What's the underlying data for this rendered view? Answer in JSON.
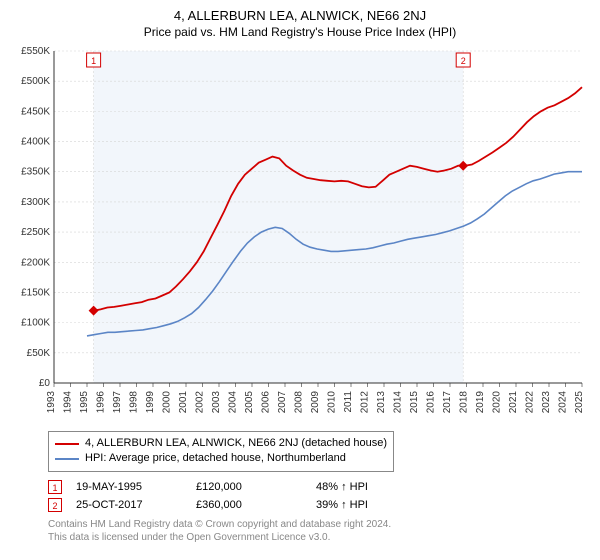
{
  "title": "4, ALLERBURN LEA, ALNWICK, NE66 2NJ",
  "subtitle": "Price paid vs. HM Land Registry's House Price Index (HPI)",
  "chart": {
    "type": "line",
    "background_color": "#ffffff",
    "plot_band_color": "#f2f6fb",
    "grid_color": "#d5d5d5",
    "axis_color": "#333333",
    "tick_font_size": 10,
    "x_years": [
      1993,
      1994,
      1995,
      1996,
      1997,
      1998,
      1999,
      2000,
      2001,
      2002,
      2003,
      2004,
      2005,
      2006,
      2007,
      2008,
      2009,
      2010,
      2011,
      2012,
      2013,
      2014,
      2015,
      2016,
      2017,
      2018,
      2019,
      2020,
      2021,
      2022,
      2023,
      2024,
      2025
    ],
    "x_year_min": 1993,
    "x_year_max": 2025,
    "y_ticks": [
      0,
      50,
      100,
      150,
      200,
      250,
      300,
      350,
      400,
      450,
      500,
      550
    ],
    "y_tick_prefix": "£",
    "y_tick_suffix": "K",
    "y_min": 0,
    "y_max": 550,
    "series": [
      {
        "name": "4, ALLERBURN LEA, ALNWICK, NE66 2NJ (detached house)",
        "color": "#d30000",
        "line_width": 1.8,
        "data_start_year": 1995.4,
        "values": [
          120,
          122,
          125,
          126,
          128,
          130,
          132,
          134,
          138,
          140,
          145,
          150,
          160,
          172,
          185,
          200,
          218,
          240,
          262,
          285,
          310,
          330,
          345,
          355,
          365,
          370,
          375,
          372,
          360,
          352,
          345,
          340,
          338,
          336,
          335,
          334,
          335,
          334,
          330,
          326,
          324,
          325,
          335,
          345,
          350,
          355,
          360,
          358,
          355,
          352,
          350,
          352,
          355,
          360,
          360,
          362,
          368,
          375,
          382,
          390,
          398,
          408,
          420,
          432,
          442,
          450,
          456,
          460,
          466,
          472,
          480,
          490
        ]
      },
      {
        "name": "HPI: Average price, detached house, Northumberland",
        "color": "#5b85c6",
        "line_width": 1.6,
        "data_start_year": 1995.0,
        "values": [
          78,
          80,
          82,
          84,
          84,
          85,
          86,
          87,
          88,
          90,
          92,
          95,
          98,
          102,
          108,
          115,
          125,
          138,
          152,
          168,
          185,
          202,
          218,
          232,
          242,
          250,
          255,
          258,
          256,
          248,
          238,
          230,
          225,
          222,
          220,
          218,
          218,
          219,
          220,
          221,
          222,
          224,
          227,
          230,
          232,
          235,
          238,
          240,
          242,
          244,
          246,
          249,
          252,
          256,
          260,
          265,
          272,
          280,
          290,
          300,
          310,
          318,
          324,
          330,
          335,
          338,
          342,
          346,
          348,
          350,
          350,
          350
        ]
      }
    ],
    "markers": [
      {
        "label": "1",
        "year": 1995.4,
        "value": 120,
        "color": "#d30000"
      },
      {
        "label": "2",
        "year": 2017.8,
        "value": 360,
        "color": "#d30000"
      }
    ]
  },
  "legend": {
    "items": [
      {
        "color": "#d30000",
        "text": "4, ALLERBURN LEA, ALNWICK, NE66 2NJ (detached house)"
      },
      {
        "color": "#5b85c6",
        "text": "HPI: Average price, detached house, Northumberland"
      }
    ]
  },
  "sales": [
    {
      "badge": "1",
      "badge_color": "#d30000",
      "date": "19-MAY-1995",
      "price": "£120,000",
      "delta": "48% ↑ HPI"
    },
    {
      "badge": "2",
      "badge_color": "#d30000",
      "date": "25-OCT-2017",
      "price": "£360,000",
      "delta": "39% ↑ HPI"
    }
  ],
  "footer_line1": "Contains HM Land Registry data © Crown copyright and database right 2024.",
  "footer_line2": "This data is licensed under the Open Government Licence v3.0."
}
